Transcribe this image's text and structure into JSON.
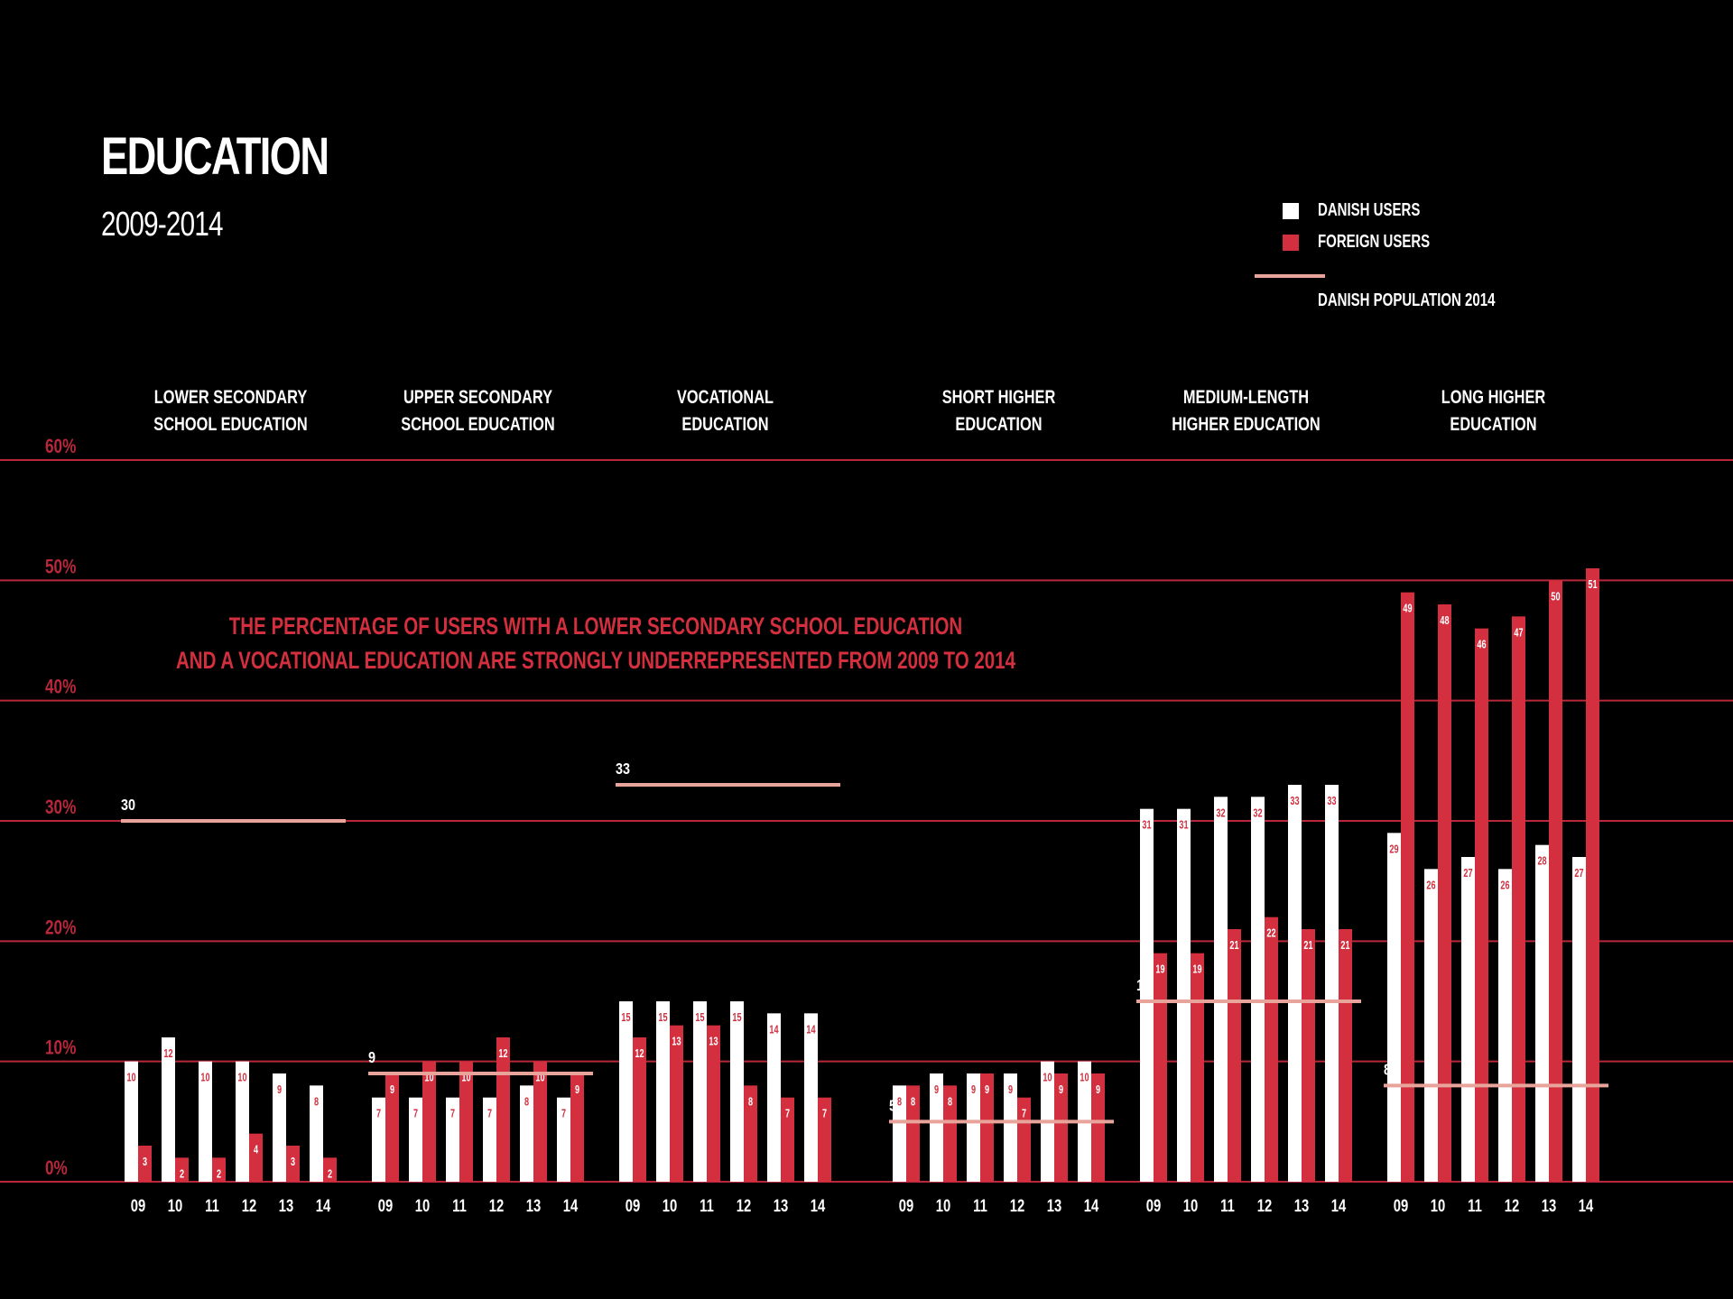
{
  "title": "EDUCATION",
  "subtitle": "2009-2014",
  "legend": {
    "danish": "DANISH USERS",
    "foreign": "FOREIGN USERS",
    "population": "DANISH POPULATION 2014"
  },
  "annotation": {
    "line1": "THE PERCENTAGE OF USERS WITH A LOWER SECONDARY SCHOOL EDUCATION",
    "line2": "AND A VOCATIONAL EDUCATION ARE STRONGLY UNDERREPRESENTED FROM 2009 TO 2014"
  },
  "colors": {
    "danish": "#ffffff",
    "foreign": "#d32f3f",
    "population": "#e8a49a",
    "grid": "#b8283a",
    "background": "#000000"
  },
  "chart_data": {
    "type": "bar",
    "title": "EDUCATION",
    "subtitle": "2009-2014",
    "ylim": [
      0,
      60
    ],
    "yticks": [
      "0%",
      "10%",
      "20%",
      "30%",
      "40%",
      "50%",
      "60%"
    ],
    "grid": true,
    "legend_position": "top-right",
    "series_names": [
      "DANISH USERS",
      "FOREIGN USERS",
      "DANISH POPULATION 2014"
    ],
    "years": [
      "09",
      "10",
      "11",
      "12",
      "13",
      "14"
    ],
    "groups": [
      {
        "label_lines": [
          "LOWER SECONDARY",
          "SCHOOL EDUCATION"
        ],
        "danish": [
          10,
          12,
          10,
          10,
          9,
          8
        ],
        "foreign": [
          3,
          2,
          2,
          4,
          3,
          2
        ],
        "population": 30
      },
      {
        "label_lines": [
          "UPPER SECONDARY",
          "SCHOOL EDUCATION"
        ],
        "danish": [
          7,
          7,
          7,
          7,
          8,
          7
        ],
        "foreign": [
          9,
          10,
          10,
          12,
          10,
          9
        ],
        "population": 9
      },
      {
        "label_lines": [
          "VOCATIONAL",
          "EDUCATION"
        ],
        "danish": [
          15,
          15,
          15,
          15,
          14,
          14
        ],
        "foreign": [
          12,
          13,
          13,
          8,
          7,
          7
        ],
        "population": 33
      },
      {
        "label_lines": [
          "SHORT HIGHER",
          "EDUCATION"
        ],
        "danish": [
          8,
          9,
          9,
          9,
          10,
          10
        ],
        "foreign": [
          8,
          8,
          9,
          7,
          9,
          9
        ],
        "population": 5
      },
      {
        "label_lines": [
          "MEDIUM-LENGTH",
          "HIGHER EDUCATION"
        ],
        "danish": [
          31,
          31,
          32,
          32,
          33,
          33
        ],
        "foreign": [
          19,
          19,
          21,
          22,
          21,
          21
        ],
        "population": 15
      },
      {
        "label_lines": [
          "LONG HIGHER",
          "EDUCATION"
        ],
        "danish": [
          29,
          26,
          27,
          26,
          28,
          27
        ],
        "foreign": [
          49,
          48,
          46,
          47,
          50,
          51
        ],
        "population": 8
      }
    ]
  }
}
